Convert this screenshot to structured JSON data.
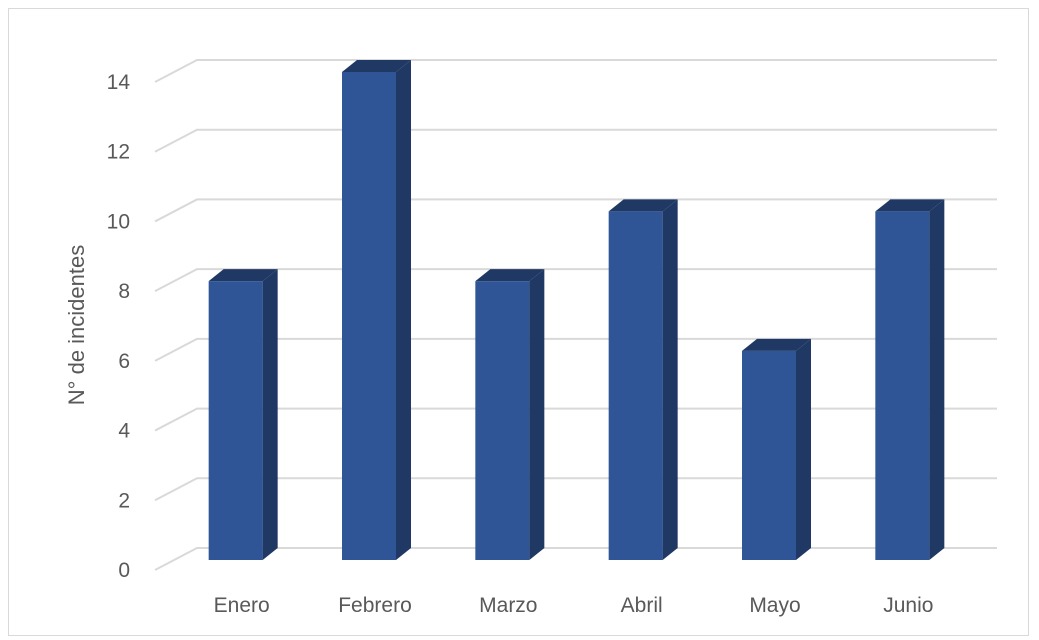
{
  "chart_data": {
    "type": "bar",
    "style": "3d-column",
    "categories": [
      "Enero",
      "Febrero",
      "Marzo",
      "Abril",
      "Mayo",
      "Junio"
    ],
    "values": [
      8,
      14,
      8,
      10,
      6,
      10
    ],
    "title": "",
    "xlabel": "",
    "ylabel": "N° de incidentes",
    "ylim": [
      0,
      14
    ],
    "yticks": [
      "0",
      "2",
      "4",
      "6",
      "8",
      "10",
      "12",
      "14"
    ],
    "grid": true,
    "legend": "none",
    "colors": {
      "bar_front": "#2f5597",
      "bar_side": "#1f3864",
      "bar_top": "#1f3864",
      "grid": "#d9d9d9",
      "text": "#595959"
    }
  }
}
